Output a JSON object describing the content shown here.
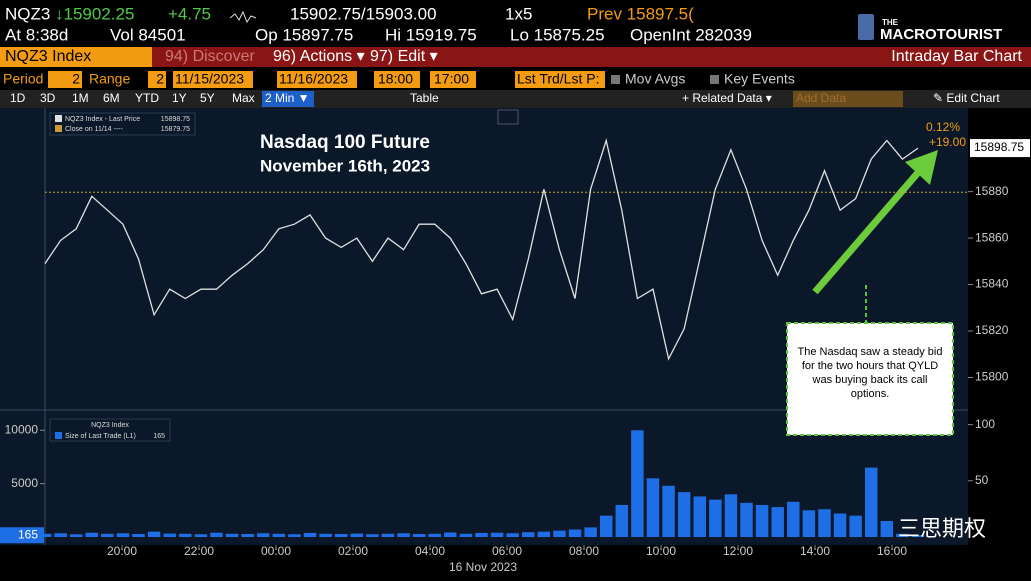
{
  "header": {
    "ticker": "NQZ3",
    "last": "↓15902.25",
    "change": "+4.75",
    "quote": "15902.75/15903.00",
    "size": "1x5",
    "prev": "Prev 15897.5(",
    "time": "At 8:38d",
    "volume": "Vol 84501",
    "open": "Op 15897.75",
    "high": "Hi 15919.75",
    "low": "Lo 15875.25",
    "open_interest": "OpenInt 282039"
  },
  "logo": {
    "small": "THE",
    "name": "MACROTOURIST"
  },
  "menu": {
    "security": "NQZ3 Index",
    "items": [
      "94) Discover",
      "96) Actions ▾",
      "97) Edit ▾"
    ],
    "view": "Intraday Bar Chart"
  },
  "settings": {
    "period_label": "Period",
    "period": "2",
    "range_label": "Range",
    "range": "2",
    "start_date": "11/15/2023",
    "end_date": "11/16/2023",
    "start_time": "18:00",
    "end_time": "17:00",
    "field": "Lst Trd/Lst P:",
    "options": [
      "Mov Avgs",
      "Key Events"
    ]
  },
  "toolbar": {
    "ranges": [
      "1D",
      "3D",
      "1M",
      "6M",
      "YTD",
      "1Y",
      "5Y",
      "Max"
    ],
    "frequency": "2 Min ▼",
    "table": "Table",
    "related": "+ Related Data ▾",
    "add_data": "Add Data",
    "edit_chart": "✎ Edit Chart"
  },
  "chart_data": [
    {
      "type": "line",
      "title": "Nasdaq 100 Future",
      "subtitle": "November 16th, 2023",
      "series": [
        {
          "name": "NQZ3 Index - Last Price",
          "color": "#e0e0e0",
          "values": [
            15849,
            15859,
            15864,
            15878,
            15872,
            15866,
            15851,
            15827,
            15838,
            15834,
            15838,
            15838,
            15844,
            15849,
            15855,
            15864,
            15866,
            15870,
            15860,
            15856,
            15860,
            15850,
            15860,
            15855,
            15866,
            15866,
            15860,
            15849,
            15836,
            15838,
            15825,
            15851,
            15881,
            15855,
            15834,
            15881,
            15902,
            15872,
            15834,
            15838,
            15808,
            15821,
            15851,
            15881,
            15898,
            15881,
            15859,
            15844,
            15859,
            15872,
            15889,
            15872,
            15877,
            15894,
            15902,
            15894,
            15898.75
          ]
        }
      ],
      "reference": {
        "name": "Close on 11/14 ----",
        "value": 15879.75,
        "color": "#c89a3c"
      },
      "change_pct": "0.12%",
      "change": "+19.00",
      "ylim": [
        15786,
        15916
      ],
      "yticks": [
        15800,
        15820,
        15840,
        15860,
        15880
      ],
      "annotation": "The Nasdaq saw a steady bid for the two hours that QYLD was buying back its call options."
    },
    {
      "type": "bar",
      "title": "NQZ3 Index",
      "series": [
        {
          "name": "Size of Last Trade (L1)",
          "color": "#1e6fe6",
          "values": [
            300,
            350,
            250,
            400,
            300,
            350,
            280,
            500,
            320,
            300,
            260,
            400,
            300,
            280,
            350,
            300,
            260,
            380,
            300,
            280,
            320,
            260,
            300,
            350,
            280,
            300,
            420,
            300,
            380,
            400,
            350,
            450,
            500,
            600,
            700,
            900,
            2000,
            3000,
            10000,
            5500,
            4800,
            4200,
            3800,
            3500,
            4000,
            3200,
            3000,
            2800,
            3300,
            2500,
            2600,
            2200,
            2000,
            6500,
            1500,
            300,
            165
          ]
        }
      ],
      "ylim": [
        0,
        11900
      ],
      "yticks": [
        5000,
        10000
      ],
      "y2lim": [
        0,
        113
      ],
      "y2ticks": [
        50,
        100
      ]
    }
  ],
  "x_axis": {
    "labels": [
      "20:00",
      "22:00",
      "00:00",
      "02:00",
      "04:00",
      "06:00",
      "08:00",
      "10:00",
      "12:00",
      "14:00",
      "16:00"
    ],
    "date": "16 Nov 2023"
  },
  "watermark": "三思期权"
}
